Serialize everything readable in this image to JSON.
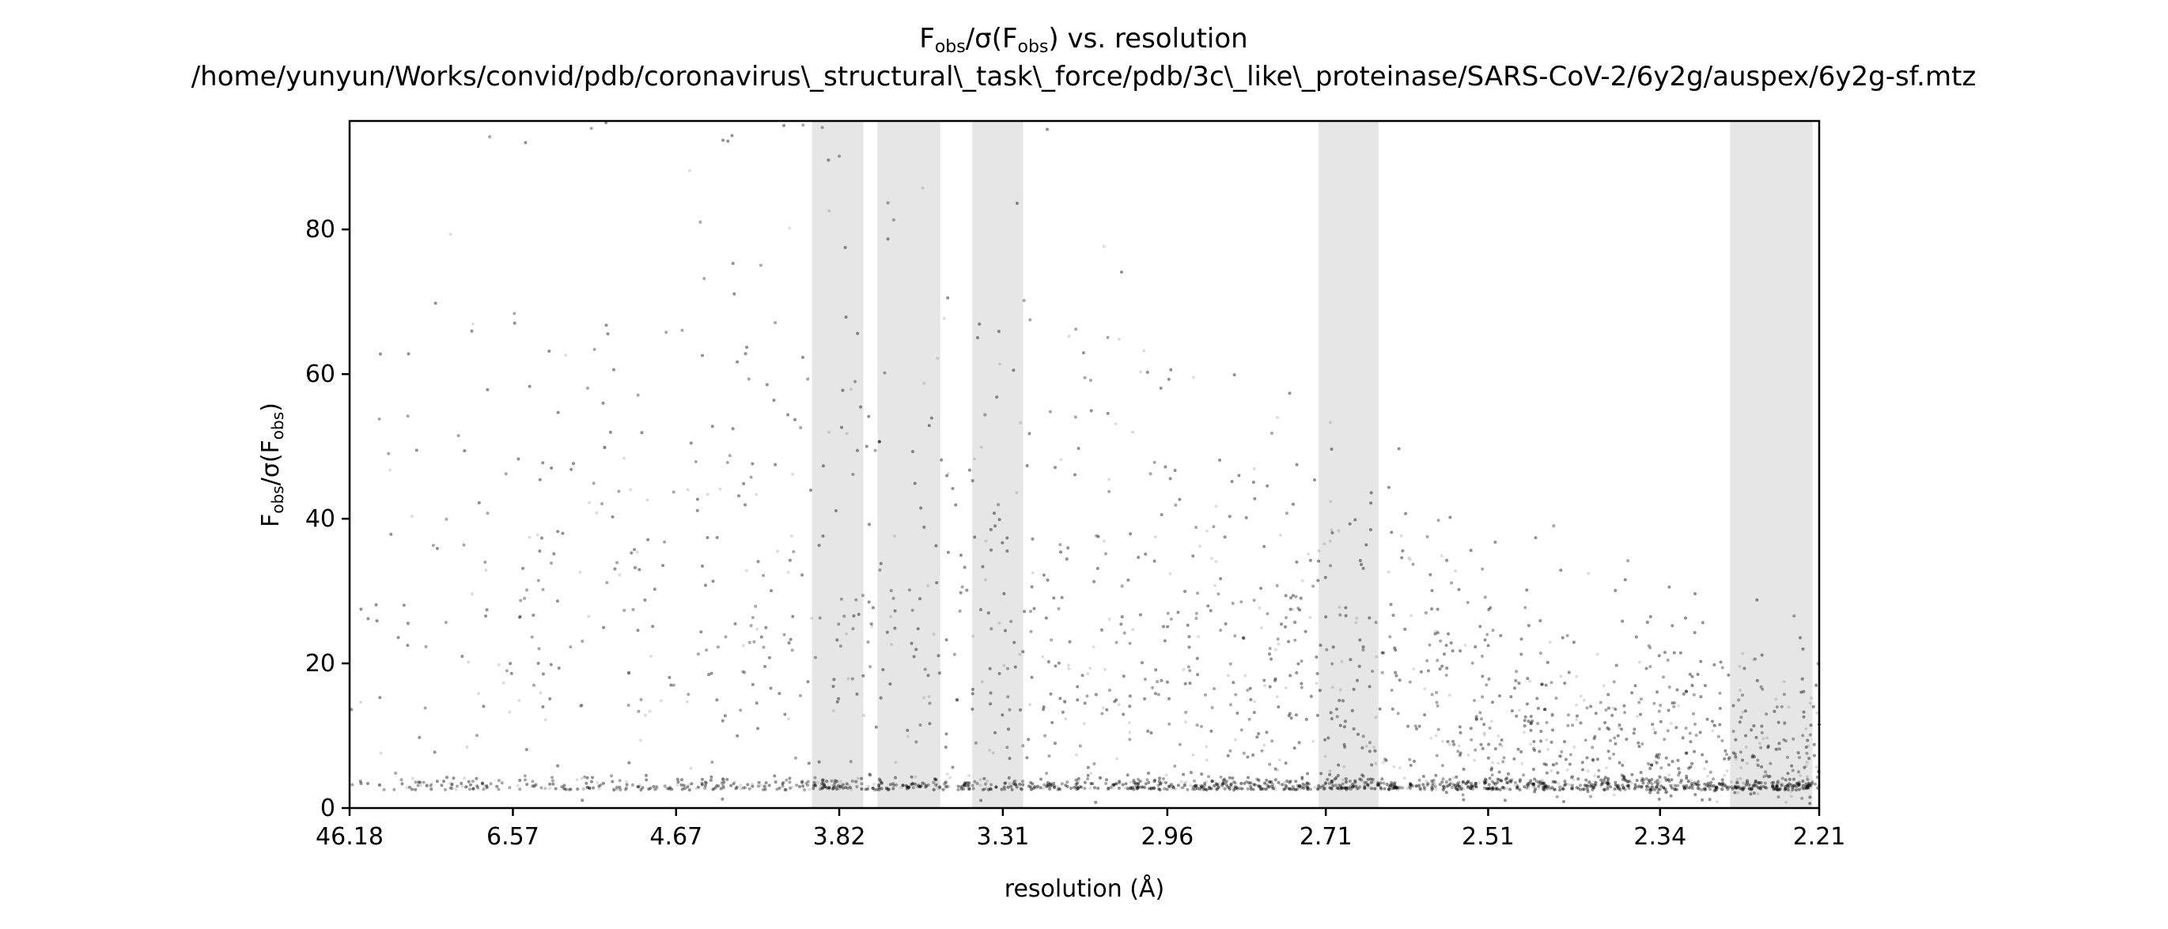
{
  "chart_data": {
    "type": "scatter",
    "title_prefix": "F",
    "title_sub1": "obs",
    "title_middle": "/σ(F",
    "title_sub2": "obs",
    "title_suffix": ") vs. resolution",
    "subtitle": "/home/yunyun/Works/convid/pdb/coronavirus\\_structural\\_task\\_force/pdb/3c\\_like\\_proteinase/SARS-CoV-2/6y2g/auspex/6y2g-sf.mtz",
    "xlabel": "resolution (Å)",
    "ylabel_main": "F",
    "ylabel_sub1": "obs",
    "ylabel_middle": "/σ(F",
    "ylabel_sub2": "obs",
    "ylabel_suffix": ")",
    "x_scale": "1/d² (reciprocal)",
    "x_ticks": [
      {
        "label": "46.18",
        "value": 46.18
      },
      {
        "label": "6.57",
        "value": 6.57
      },
      {
        "label": "4.67",
        "value": 4.67
      },
      {
        "label": "3.82",
        "value": 3.82
      },
      {
        "label": "3.31",
        "value": 3.31
      },
      {
        "label": "2.96",
        "value": 2.96
      },
      {
        "label": "2.71",
        "value": 2.71
      },
      {
        "label": "2.51",
        "value": 2.51
      },
      {
        "label": "2.34",
        "value": 2.34
      },
      {
        "label": "2.21",
        "value": 2.21
      }
    ],
    "xlim": [
      46.18,
      2.21
    ],
    "y_ticks": [
      0,
      20,
      40,
      60,
      80
    ],
    "ylim": [
      0,
      95
    ],
    "grid": false,
    "point_color": "#000000",
    "band_color": "#e6e6e6",
    "highlight_bands": [
      {
        "from": 3.93,
        "to": 3.73
      },
      {
        "from": 3.68,
        "to": 3.48
      },
      {
        "from": 3.39,
        "to": 3.26
      },
      {
        "from": 2.72,
        "to": 2.64
      },
      {
        "from": 2.28,
        "to": 2.215
      }
    ],
    "point_density": {
      "description": "Dense scatter of observations across resolution shells; heavy concentration near y≈2 increasing toward high resolution, upper envelope decreasing from ≈95 at low resolution to ≈25 near 2.21 Å",
      "upper_envelope": [
        {
          "resolution": 46.18,
          "value": 95
        },
        {
          "resolution": 4.67,
          "value": 95
        },
        {
          "resolution": 3.82,
          "value": 95
        },
        {
          "resolution": 3.31,
          "value": 88
        },
        {
          "resolution": 2.96,
          "value": 72
        },
        {
          "resolution": 2.71,
          "value": 60
        },
        {
          "resolution": 2.51,
          "value": 42
        },
        {
          "resolution": 2.34,
          "value": 30
        },
        {
          "resolution": 2.21,
          "value": 25
        }
      ],
      "baseline_value": 2.5
    }
  }
}
